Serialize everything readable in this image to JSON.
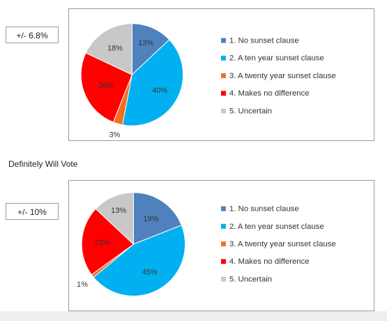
{
  "colors": {
    "no_sunset": "#4f81bd",
    "ten_year": "#00b0f0",
    "twenty_year": "#f36f21",
    "no_difference": "#ff0000",
    "uncertain": "#c8c8c8"
  },
  "section_label": "Definitely Will Vote",
  "chart_data": [
    {
      "type": "pie",
      "margin_label": "+/- 6.8%",
      "categories": [
        "1. No sunset clause",
        "2. A ten year sunset clause",
        "3. A twenty year sunset clause",
        "4. Makes no difference",
        "5. Uncertain"
      ],
      "values": [
        13,
        40,
        3,
        26,
        18
      ],
      "labels": [
        "13%",
        "40%",
        "3%",
        "26%",
        "18%"
      ],
      "legend": "right"
    },
    {
      "type": "pie",
      "margin_label": "+/- 10%",
      "categories": [
        "1. No sunset clause",
        "2. A ten year sunset clause",
        "3. A twenty year sunset clause",
        "4. Makes no difference",
        "5. Uncertain"
      ],
      "values": [
        19,
        45,
        1,
        22,
        13
      ],
      "labels": [
        "19%",
        "45%",
        "1%",
        "22%",
        "13%"
      ],
      "legend": "right"
    }
  ]
}
